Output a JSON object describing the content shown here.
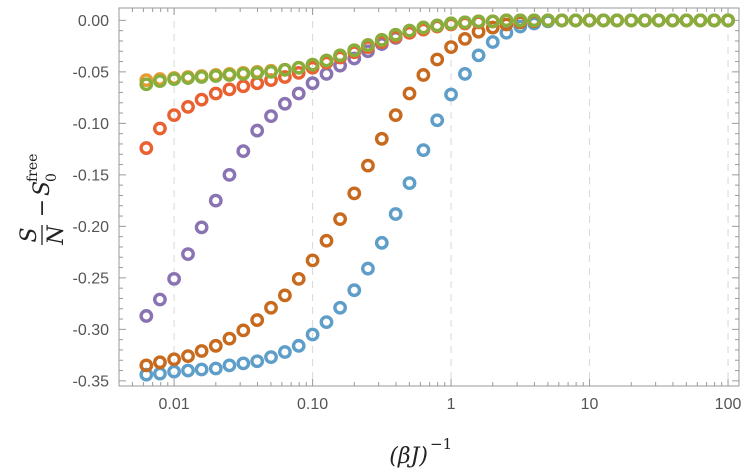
{
  "chart_data": {
    "type": "scatter",
    "xscale": "log",
    "xlim": [
      0.004,
      120
    ],
    "ylim": [
      -0.355,
      0.012
    ],
    "grid": {
      "x_major_dashed": true,
      "y": false
    },
    "xticks": [
      {
        "value": 0.01,
        "label": "0.01"
      },
      {
        "value": 0.1,
        "label": "0.10"
      },
      {
        "value": 1,
        "label": "1"
      },
      {
        "value": 10,
        "label": "10"
      },
      {
        "value": 100,
        "label": "100"
      }
    ],
    "yticks": [
      {
        "value": 0.0,
        "label": "0.00"
      },
      {
        "value": -0.05,
        "label": "-0.05"
      },
      {
        "value": -0.1,
        "label": "-0.10"
      },
      {
        "value": -0.15,
        "label": "-0.15"
      },
      {
        "value": -0.2,
        "label": "-0.20"
      },
      {
        "value": -0.25,
        "label": "-0.25"
      },
      {
        "value": -0.3,
        "label": "-0.30"
      },
      {
        "value": -0.35,
        "label": "-0.35"
      }
    ],
    "xlabel": {
      "base": "(βJ)",
      "exp": "−1"
    },
    "ylabel": {
      "num": "S",
      "den": "N",
      "minus": "−",
      "sym": "S",
      "sub": "0",
      "sup": "free"
    },
    "series": [
      {
        "color": "#5E9EC9",
        "values": [
          [
            0.0063,
            -0.344
          ],
          [
            0.0079,
            -0.343
          ],
          [
            0.01,
            -0.341
          ],
          [
            0.0126,
            -0.34
          ],
          [
            0.0158,
            -0.339
          ],
          [
            0.02,
            -0.338
          ],
          [
            0.0251,
            -0.335
          ],
          [
            0.0316,
            -0.333
          ],
          [
            0.0398,
            -0.331
          ],
          [
            0.0501,
            -0.327
          ],
          [
            0.0631,
            -0.322
          ],
          [
            0.0794,
            -0.316
          ],
          [
            0.1,
            -0.305
          ],
          [
            0.126,
            -0.293
          ],
          [
            0.158,
            -0.279
          ],
          [
            0.2,
            -0.262
          ],
          [
            0.251,
            -0.241
          ],
          [
            0.316,
            -0.216
          ],
          [
            0.398,
            -0.188
          ],
          [
            0.501,
            -0.158
          ],
          [
            0.631,
            -0.126
          ],
          [
            0.794,
            -0.097
          ],
          [
            1.0,
            -0.072
          ],
          [
            1.26,
            -0.052
          ],
          [
            1.58,
            -0.034
          ],
          [
            2.0,
            -0.021
          ],
          [
            2.51,
            -0.012
          ],
          [
            3.16,
            -0.006
          ],
          [
            3.98,
            -0.003
          ],
          [
            5.01,
            -0.001
          ],
          [
            6.31,
            0.0
          ],
          [
            7.94,
            0.0
          ],
          [
            10,
            0.0
          ],
          [
            12.6,
            0.0
          ],
          [
            15.8,
            0.0
          ],
          [
            20,
            0.0
          ],
          [
            25.1,
            0.0
          ],
          [
            31.6,
            0.0
          ],
          [
            39.8,
            0.0
          ],
          [
            50.1,
            0.0
          ],
          [
            63.1,
            0.0
          ],
          [
            79.4,
            0.0
          ],
          [
            100,
            0.0
          ]
        ]
      },
      {
        "color": "#C86A1E",
        "values": [
          [
            0.0063,
            -0.335
          ],
          [
            0.0079,
            -0.332
          ],
          [
            0.01,
            -0.329
          ],
          [
            0.0126,
            -0.326
          ],
          [
            0.0158,
            -0.321
          ],
          [
            0.02,
            -0.316
          ],
          [
            0.0251,
            -0.309
          ],
          [
            0.0316,
            -0.301
          ],
          [
            0.0398,
            -0.291
          ],
          [
            0.0501,
            -0.279
          ],
          [
            0.0631,
            -0.267
          ],
          [
            0.0794,
            -0.251
          ],
          [
            0.1,
            -0.233
          ],
          [
            0.126,
            -0.214
          ],
          [
            0.158,
            -0.193
          ],
          [
            0.2,
            -0.168
          ],
          [
            0.251,
            -0.141
          ],
          [
            0.316,
            -0.115
          ],
          [
            0.398,
            -0.092
          ],
          [
            0.501,
            -0.071
          ],
          [
            0.631,
            -0.053
          ],
          [
            0.794,
            -0.038
          ],
          [
            1.0,
            -0.026
          ],
          [
            1.26,
            -0.018
          ],
          [
            1.58,
            -0.011
          ],
          [
            2.0,
            -0.007
          ],
          [
            2.51,
            -0.004
          ],
          [
            3.16,
            -0.002
          ],
          [
            3.98,
            -0.001
          ],
          [
            5.01,
            0.0
          ],
          [
            6.31,
            0.0
          ],
          [
            7.94,
            0.0
          ],
          [
            10,
            0.0
          ],
          [
            12.6,
            0.0
          ],
          [
            15.8,
            0.0
          ],
          [
            20,
            0.0
          ],
          [
            25.1,
            0.0
          ],
          [
            31.6,
            0.0
          ],
          [
            39.8,
            0.0
          ],
          [
            50.1,
            0.0
          ],
          [
            63.1,
            0.0
          ],
          [
            79.4,
            0.0
          ],
          [
            100,
            0.0
          ]
        ]
      },
      {
        "color": "#8A73B2",
        "values": [
          [
            0.0063,
            -0.287
          ],
          [
            0.0079,
            -0.271
          ],
          [
            0.01,
            -0.251
          ],
          [
            0.0126,
            -0.227
          ],
          [
            0.0158,
            -0.201
          ],
          [
            0.02,
            -0.175
          ],
          [
            0.0251,
            -0.15
          ],
          [
            0.0316,
            -0.127
          ],
          [
            0.0398,
            -0.107
          ],
          [
            0.0501,
            -0.093
          ],
          [
            0.0631,
            -0.081
          ],
          [
            0.0794,
            -0.071
          ],
          [
            0.1,
            -0.061
          ],
          [
            0.126,
            -0.052
          ],
          [
            0.158,
            -0.044
          ],
          [
            0.2,
            -0.037
          ],
          [
            0.251,
            -0.03
          ],
          [
            0.316,
            -0.023
          ],
          [
            0.398,
            -0.017
          ],
          [
            0.501,
            -0.012
          ],
          [
            0.631,
            -0.008
          ],
          [
            0.794,
            -0.005
          ],
          [
            1.0,
            -0.003
          ],
          [
            1.26,
            -0.002
          ],
          [
            1.58,
            -0.001
          ],
          [
            2.0,
            -0.001
          ],
          [
            2.51,
            0.0
          ],
          [
            3.16,
            0.0
          ],
          [
            3.98,
            0.0
          ],
          [
            5.01,
            0.0
          ],
          [
            6.31,
            0.0
          ],
          [
            7.94,
            0.0
          ],
          [
            10,
            0.0
          ],
          [
            12.6,
            0.0
          ],
          [
            15.8,
            0.0
          ],
          [
            20,
            0.0
          ],
          [
            25.1,
            0.0
          ],
          [
            31.6,
            0.0
          ],
          [
            39.8,
            0.0
          ],
          [
            50.1,
            0.0
          ],
          [
            63.1,
            0.0
          ],
          [
            79.4,
            0.0
          ],
          [
            100,
            0.0
          ]
        ]
      },
      {
        "color": "#EA6131",
        "values": [
          [
            0.0063,
            -0.124
          ],
          [
            0.0079,
            -0.105
          ],
          [
            0.01,
            -0.092
          ],
          [
            0.0126,
            -0.084
          ],
          [
            0.0158,
            -0.077
          ],
          [
            0.02,
            -0.071
          ],
          [
            0.0251,
            -0.067
          ],
          [
            0.0316,
            -0.064
          ],
          [
            0.0398,
            -0.061
          ],
          [
            0.0501,
            -0.058
          ],
          [
            0.0631,
            -0.055
          ],
          [
            0.0794,
            -0.051
          ],
          [
            0.1,
            -0.046
          ],
          [
            0.126,
            -0.041
          ],
          [
            0.158,
            -0.036
          ],
          [
            0.2,
            -0.031
          ],
          [
            0.251,
            -0.026
          ],
          [
            0.316,
            -0.021
          ],
          [
            0.398,
            -0.016
          ],
          [
            0.501,
            -0.012
          ],
          [
            0.631,
            -0.009
          ],
          [
            0.794,
            -0.006
          ],
          [
            1.0,
            -0.004
          ],
          [
            1.26,
            -0.003
          ],
          [
            1.58,
            -0.002
          ],
          [
            2.0,
            -0.001
          ],
          [
            2.51,
            0.0
          ],
          [
            3.16,
            0.0
          ],
          [
            3.98,
            0.0
          ],
          [
            5.01,
            0.0
          ],
          [
            6.31,
            0.0
          ],
          [
            7.94,
            0.0
          ],
          [
            10,
            0.0
          ],
          [
            12.6,
            0.0
          ],
          [
            15.8,
            0.0
          ],
          [
            20,
            0.0
          ],
          [
            25.1,
            0.0
          ],
          [
            31.6,
            0.0
          ],
          [
            39.8,
            0.0
          ],
          [
            50.1,
            0.0
          ],
          [
            63.1,
            0.0
          ],
          [
            79.4,
            0.0
          ],
          [
            100,
            0.0
          ]
        ]
      },
      {
        "color": "#E89A2E",
        "values": [
          [
            0.0063,
            -0.058
          ],
          [
            0.0079,
            -0.057
          ],
          [
            0.01,
            -0.056
          ],
          [
            0.0126,
            -0.055
          ],
          [
            0.0158,
            -0.054
          ],
          [
            0.02,
            -0.053
          ],
          [
            0.0251,
            -0.052
          ],
          [
            0.0316,
            -0.051
          ],
          [
            0.0398,
            -0.05
          ],
          [
            0.0501,
            -0.049
          ],
          [
            0.0631,
            -0.048
          ],
          [
            0.0794,
            -0.046
          ],
          [
            0.1,
            -0.043
          ],
          [
            0.126,
            -0.039
          ],
          [
            0.158,
            -0.034
          ],
          [
            0.2,
            -0.029
          ],
          [
            0.251,
            -0.024
          ],
          [
            0.316,
            -0.019
          ],
          [
            0.398,
            -0.014
          ],
          [
            0.501,
            -0.01
          ],
          [
            0.631,
            -0.007
          ],
          [
            0.794,
            -0.005
          ],
          [
            1.0,
            -0.003
          ],
          [
            1.26,
            -0.002
          ],
          [
            1.58,
            -0.001
          ],
          [
            2.0,
            -0.001
          ],
          [
            2.51,
            0.0
          ],
          [
            3.16,
            0.0
          ],
          [
            3.98,
            0.0
          ],
          [
            5.01,
            0.0
          ],
          [
            6.31,
            0.0
          ],
          [
            7.94,
            0.0
          ],
          [
            10,
            0.0
          ],
          [
            12.6,
            0.0
          ],
          [
            15.8,
            0.0
          ],
          [
            20,
            0.0
          ],
          [
            25.1,
            0.0
          ],
          [
            31.6,
            0.0
          ],
          [
            39.8,
            0.0
          ],
          [
            50.1,
            0.0
          ],
          [
            63.1,
            0.0
          ],
          [
            79.4,
            0.0
          ],
          [
            100,
            0.0
          ]
        ]
      },
      {
        "color": "#86AE3C",
        "values": [
          [
            0.0063,
            -0.062
          ],
          [
            0.0079,
            -0.059
          ],
          [
            0.01,
            -0.057
          ],
          [
            0.0126,
            -0.056
          ],
          [
            0.0158,
            -0.055
          ],
          [
            0.02,
            -0.054
          ],
          [
            0.0251,
            -0.053
          ],
          [
            0.0316,
            -0.052
          ],
          [
            0.0398,
            -0.051
          ],
          [
            0.0501,
            -0.05
          ],
          [
            0.0631,
            -0.048
          ],
          [
            0.0794,
            -0.046
          ],
          [
            0.1,
            -0.043
          ],
          [
            0.126,
            -0.039
          ],
          [
            0.158,
            -0.034
          ],
          [
            0.2,
            -0.029
          ],
          [
            0.251,
            -0.024
          ],
          [
            0.316,
            -0.019
          ],
          [
            0.398,
            -0.014
          ],
          [
            0.501,
            -0.01
          ],
          [
            0.631,
            -0.007
          ],
          [
            0.794,
            -0.005
          ],
          [
            1.0,
            -0.003
          ],
          [
            1.26,
            -0.002
          ],
          [
            1.58,
            -0.001
          ],
          [
            2.0,
            -0.001
          ],
          [
            2.51,
            0.0
          ],
          [
            3.16,
            0.0
          ],
          [
            3.98,
            0.0
          ],
          [
            5.01,
            0.0
          ],
          [
            6.31,
            0.0
          ],
          [
            7.94,
            0.0
          ],
          [
            10,
            0.0
          ],
          [
            12.6,
            0.0
          ],
          [
            15.8,
            0.0
          ],
          [
            20,
            0.0
          ],
          [
            25.1,
            0.0
          ],
          [
            31.6,
            0.0
          ],
          [
            39.8,
            0.0
          ],
          [
            50.1,
            0.0
          ],
          [
            63.1,
            0.0
          ],
          [
            79.4,
            0.0
          ],
          [
            100,
            0.0
          ]
        ]
      }
    ]
  }
}
